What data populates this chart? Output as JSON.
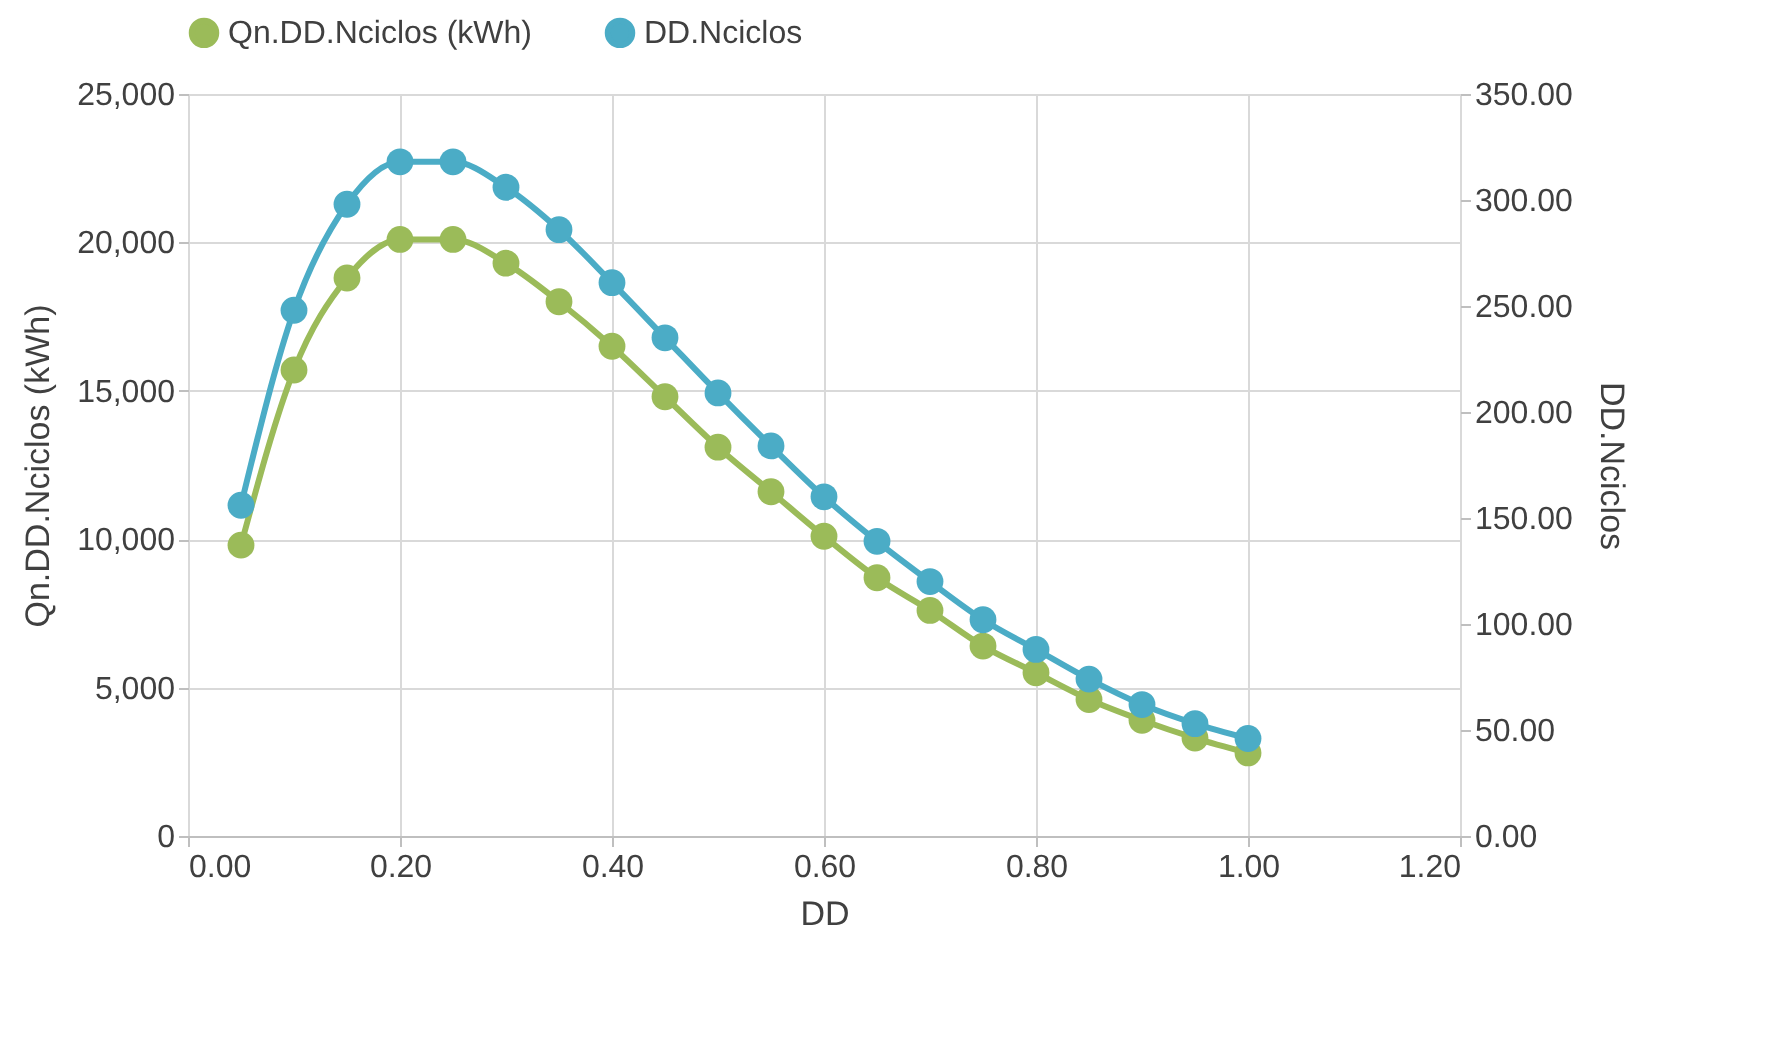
{
  "chart_data": {
    "type": "line",
    "xlabel": "DD",
    "ylabel": "Qn.DD.Nciclos (kWh)",
    "y2label": "DD.Nciclos",
    "x": [
      0.05,
      0.1,
      0.15,
      0.2,
      0.25,
      0.3,
      0.35,
      0.4,
      0.45,
      0.5,
      0.55,
      0.6,
      0.65,
      0.7,
      0.75,
      0.8,
      0.85,
      0.9,
      0.95,
      1.0
    ],
    "series": [
      {
        "name": "Qn.DD.Nciclos (kWh)",
        "color": "#9bbb59",
        "values": [
          9800,
          15700,
          18800,
          20100,
          20100,
          19300,
          18000,
          16500,
          14800,
          13100,
          11600,
          10100,
          8700,
          7600,
          6400,
          5500,
          4600,
          3900,
          3300,
          2800
        ]
      },
      {
        "name": "DD.Nciclos",
        "color": "#4bacc6",
        "axis": "y2",
        "values": [
          156,
          248,
          298,
          318,
          318,
          306,
          286,
          261,
          235,
          209,
          184,
          160,
          139,
          120,
          102,
          88,
          74,
          62,
          53,
          46
        ]
      }
    ],
    "xlim": [
      0,
      1.2
    ],
    "xticks": [
      {
        "value": 0,
        "label": "0.00"
      },
      {
        "value": 0.2,
        "label": "0.20"
      },
      {
        "value": 0.4,
        "label": "0.40"
      },
      {
        "value": 0.6,
        "label": "0.60"
      },
      {
        "value": 0.8,
        "label": "0.80"
      },
      {
        "value": 1.0,
        "label": "1.00"
      },
      {
        "value": 1.2,
        "label": "1.20"
      }
    ],
    "ylim": [
      0,
      25000
    ],
    "yticks": [
      0,
      {
        "value": 5000,
        "label": "5,000"
      },
      {
        "value": 10000,
        "label": "10,000"
      },
      {
        "value": 15000,
        "label": "15,000"
      },
      {
        "value": 20000,
        "label": "20,000"
      },
      {
        "value": 25000,
        "label": "25,000"
      }
    ],
    "y2lim": [
      0,
      350
    ],
    "y2ticks": [
      {
        "value": 0,
        "label": "0.00"
      },
      {
        "value": 50,
        "label": "50.00"
      },
      {
        "value": 100,
        "label": "100.00"
      },
      {
        "value": 150,
        "label": "150.00"
      },
      {
        "value": 200,
        "label": "200.00"
      },
      {
        "value": 250,
        "label": "250.00"
      },
      {
        "value": 300,
        "label": "300.00"
      },
      {
        "value": 350,
        "label": "350.00"
      }
    ],
    "grid": true,
    "legend": "top",
    "marker": "circle",
    "line_style": "solid"
  }
}
